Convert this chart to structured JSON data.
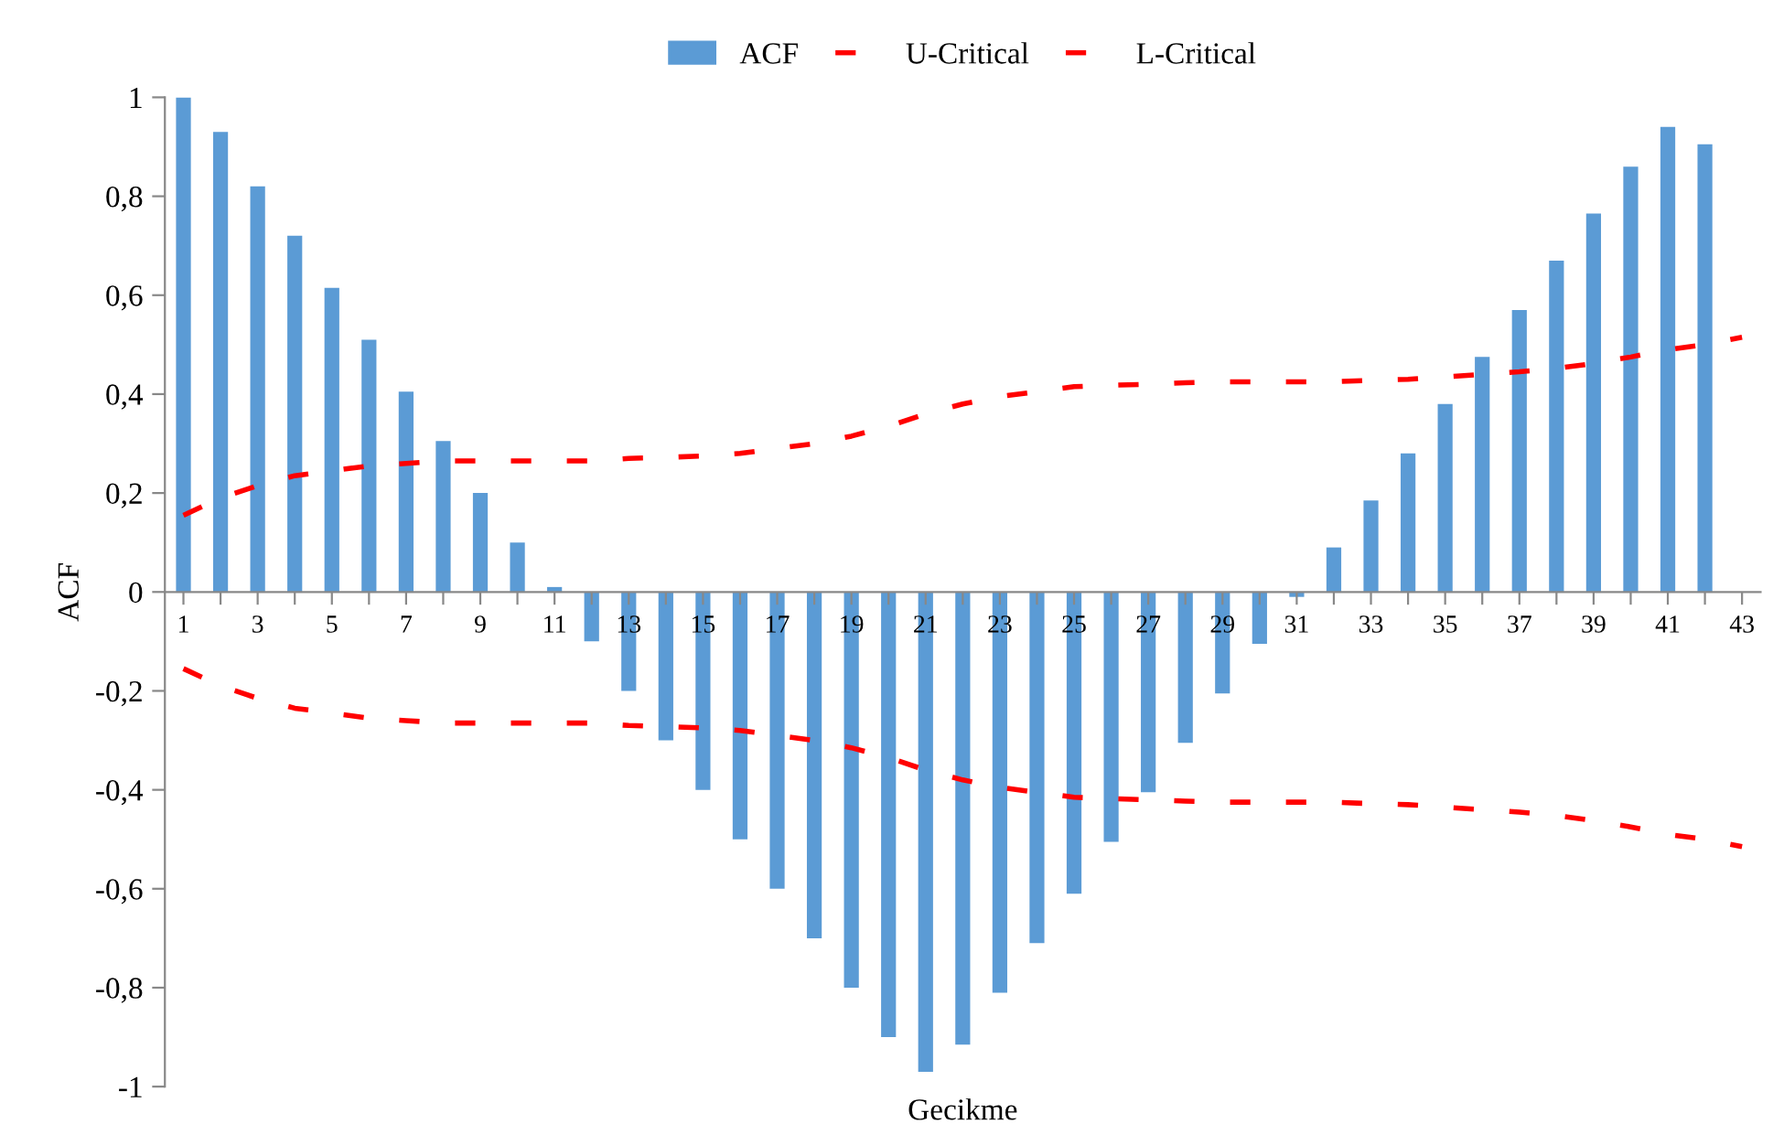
{
  "chart_data": {
    "type": "bar",
    "xlabel": "Gecikme",
    "ylabel": "ACF",
    "categories": [
      "1",
      null,
      "3",
      null,
      "5",
      null,
      "7",
      null,
      "9",
      null,
      "11",
      null,
      "13",
      null,
      "15",
      null,
      "17",
      null,
      "19",
      null,
      "21",
      null,
      "23",
      null,
      "25",
      null,
      "27",
      null,
      "29",
      null,
      "31",
      null,
      "33",
      null,
      "35",
      null,
      "37",
      null,
      "39",
      null,
      "41",
      null,
      "43"
    ],
    "series": [
      {
        "name": "ACF",
        "color": "#5b9bd5",
        "values": [
          1.0,
          0.93,
          0.82,
          0.72,
          0.615,
          0.51,
          0.405,
          0.305,
          0.2,
          0.1,
          0.01,
          -0.1,
          -0.2,
          -0.3,
          -0.4,
          -0.5,
          -0.6,
          -0.7,
          -0.8,
          -0.9,
          -0.97,
          -0.915,
          -0.81,
          -0.71,
          -0.61,
          -0.505,
          -0.405,
          -0.305,
          -0.205,
          -0.105,
          -0.01,
          0.09,
          0.185,
          0.28,
          0.38,
          0.475,
          0.57,
          0.67,
          0.765,
          0.86,
          0.94,
          0.905,
          null
        ]
      },
      {
        "name": "U-Critical",
        "type": "line",
        "color": "#ff0000",
        "line_style": "dashed",
        "values": [
          0.155,
          0.19,
          0.215,
          0.235,
          0.245,
          0.255,
          0.26,
          0.265,
          0.265,
          0.265,
          0.265,
          0.265,
          0.27,
          0.272,
          0.275,
          0.28,
          0.29,
          0.3,
          0.315,
          0.335,
          0.36,
          0.38,
          0.395,
          0.405,
          0.415,
          0.418,
          0.42,
          0.423,
          0.425,
          0.425,
          0.425,
          0.425,
          0.428,
          0.43,
          0.435,
          0.44,
          0.445,
          0.452,
          0.462,
          0.475,
          0.49,
          0.5,
          0.515
        ]
      },
      {
        "name": "L-Critical",
        "type": "line",
        "color": "#ff0000",
        "line_style": "dashed",
        "values": [
          -0.155,
          -0.19,
          -0.215,
          -0.235,
          -0.245,
          -0.255,
          -0.26,
          -0.265,
          -0.265,
          -0.265,
          -0.265,
          -0.265,
          -0.27,
          -0.272,
          -0.275,
          -0.28,
          -0.29,
          -0.3,
          -0.315,
          -0.335,
          -0.36,
          -0.38,
          -0.395,
          -0.405,
          -0.415,
          -0.418,
          -0.42,
          -0.423,
          -0.425,
          -0.425,
          -0.425,
          -0.425,
          -0.428,
          -0.43,
          -0.435,
          -0.44,
          -0.445,
          -0.452,
          -0.462,
          -0.475,
          -0.49,
          -0.5,
          -0.515
        ]
      }
    ],
    "ylim": [
      -1,
      1
    ],
    "yticks": [
      -1,
      {
        "value": -0.8,
        "label": "-0,8"
      },
      {
        "value": -0.6,
        "label": "-0,6"
      },
      {
        "value": -0.4,
        "label": "-0,4"
      },
      {
        "value": -0.2,
        "label": "-0,2"
      },
      0,
      {
        "value": 0.2,
        "label": "0,2"
      },
      {
        "value": 0.4,
        "label": "0,4"
      },
      {
        "value": 0.6,
        "label": "0,6"
      },
      {
        "value": 0.8,
        "label": "0,8"
      },
      1
    ],
    "grid": false,
    "legend": "top",
    "marker": "none"
  }
}
